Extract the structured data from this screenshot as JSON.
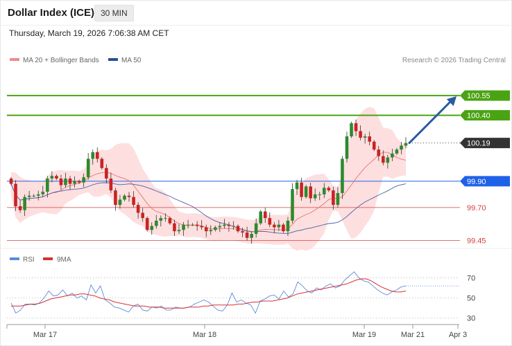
{
  "header": {
    "title": "Dollar Index (ICE)",
    "timeframe": "30 MIN",
    "datetime": "Thursday, March 19, 2026 7:06:38 AM CET"
  },
  "legend": {
    "bollinger": "MA 20 + Bollinger Bands",
    "ma50": "MA 50",
    "credit": "Research © 2026 Trading Central"
  },
  "rsi_legend": {
    "rsi": "RSI",
    "ma": "9MA"
  },
  "colors": {
    "green": "#4aa312",
    "blue": "#1f62e8",
    "red": "#d64040",
    "dark": "#333333",
    "band": "#fdd9d9",
    "ma20": "#f07070",
    "ma50": "#4a5fa8",
    "up": "#2d8a2d",
    "down": "#cc2222",
    "arrow": "#2a5aa0",
    "rsi": "#5b8bd9",
    "rsi_ma": "#d63030"
  },
  "chart_data": [
    {
      "type": "candlestick",
      "instrument": "Dollar Index (ICE)",
      "interval": "30 MIN",
      "ylim": [
        99.4,
        100.75
      ],
      "x_ticks": [
        "Mar 17",
        "Mar 18",
        "Mar 19",
        "Mar 21",
        "Apr 3"
      ],
      "levels": [
        {
          "value": 100.55,
          "label": "100.55",
          "style": "resistance"
        },
        {
          "value": 100.4,
          "label": "100.40",
          "style": "resistance"
        },
        {
          "value": 100.19,
          "label": "100.19",
          "style": "last"
        },
        {
          "value": 99.9,
          "label": "99.90",
          "style": "pivot"
        },
        {
          "value": 99.7,
          "label": "99.70",
          "style": "support"
        },
        {
          "value": 99.45,
          "label": "99.45",
          "style": "support"
        }
      ],
      "closes": [
        99.88,
        99.71,
        99.68,
        99.78,
        99.79,
        99.79,
        99.8,
        99.82,
        99.92,
        99.94,
        99.92,
        99.87,
        99.92,
        99.88,
        99.9,
        99.89,
        99.93,
        100.07,
        100.12,
        100.07,
        100.0,
        99.92,
        99.83,
        99.72,
        99.76,
        99.79,
        99.78,
        99.72,
        99.66,
        99.62,
        99.53,
        99.56,
        99.6,
        99.62,
        99.62,
        99.58,
        99.52,
        99.53,
        99.57,
        99.57,
        99.57,
        99.56,
        99.55,
        99.52,
        99.53,
        99.55,
        99.56,
        99.57,
        99.56,
        99.56,
        99.52,
        99.51,
        99.47,
        99.5,
        99.58,
        99.67,
        99.62,
        99.57,
        99.55,
        99.57,
        99.52,
        99.6,
        99.84,
        99.89,
        99.78,
        99.86,
        99.77,
        99.8,
        99.8,
        99.85,
        99.83,
        99.72,
        99.81,
        100.07,
        100.24,
        100.34,
        100.28,
        100.23,
        100.24,
        100.2,
        100.14,
        100.09,
        100.04,
        100.08,
        100.11,
        100.14,
        100.17,
        100.19
      ],
      "ma20_end": 100.06,
      "ma50_end": 99.88,
      "forecast": {
        "from": 100.19,
        "to": 100.55
      }
    },
    {
      "type": "line",
      "name": "RSI",
      "ylim": [
        25,
        80
      ],
      "yticks": [
        30,
        50,
        70
      ],
      "series": [
        {
          "name": "RSI",
          "values": [
            45,
            35,
            38,
            44,
            44,
            43,
            45,
            50,
            57,
            52,
            53,
            58,
            52,
            55,
            50,
            52,
            48,
            63,
            55,
            62,
            48,
            45,
            41,
            40,
            38,
            36,
            42,
            44,
            38,
            37,
            41,
            40,
            42,
            38,
            38,
            41,
            40,
            40,
            41,
            44,
            46,
            48,
            46,
            42,
            38,
            37,
            43,
            55,
            46,
            48,
            45,
            43,
            35,
            47,
            49,
            52,
            53,
            49,
            57,
            51,
            54,
            66,
            62,
            57,
            55,
            60,
            58,
            62,
            64,
            60,
            62,
            68,
            72,
            76,
            70,
            67,
            66,
            62,
            58,
            55,
            53,
            56,
            58,
            61,
            62
          ]
        },
        {
          "name": "9MA",
          "values": [
            42,
            42,
            42,
            43,
            44,
            44,
            45,
            47,
            49,
            50,
            51,
            52,
            53,
            53,
            54,
            54,
            53,
            52,
            50,
            49,
            48,
            46,
            45,
            44,
            43,
            42,
            42,
            42,
            41,
            41,
            41,
            40,
            40,
            40,
            40,
            40,
            41,
            41,
            41,
            42,
            42,
            43,
            43,
            43,
            43,
            43,
            44,
            44,
            45,
            46,
            46,
            47,
            47,
            47,
            48,
            49,
            50,
            52,
            54,
            55,
            56,
            57,
            58,
            59,
            60,
            61,
            62,
            63,
            64,
            66,
            68,
            69,
            69,
            67,
            64,
            61,
            59,
            57,
            56,
            56,
            57
          ]
        }
      ]
    }
  ]
}
